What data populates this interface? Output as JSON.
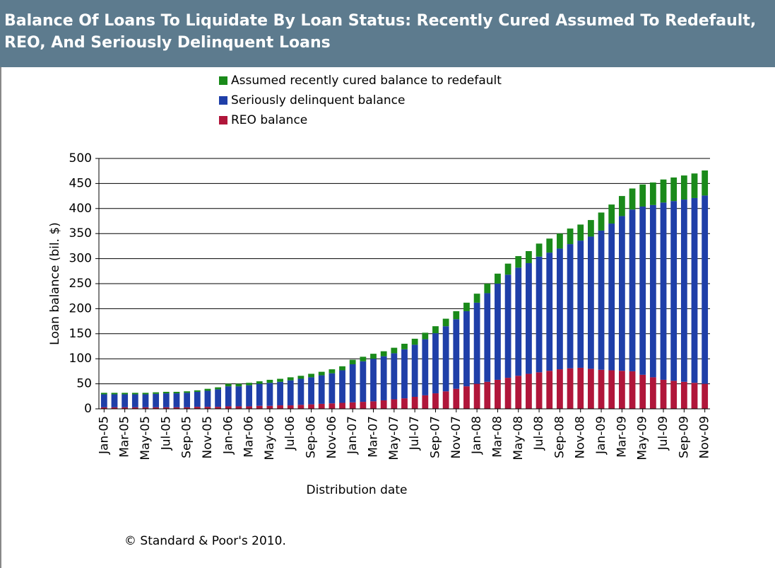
{
  "chart_data": {
    "type": "stacked_bar",
    "title": "Balance Of Loans To Liquidate By Loan Status: Recently Cured Assumed To Redefault, REO, And Seriously Delinquent Loans",
    "x_label": "Distribution date",
    "y_label": "Loan balance (bil. $)",
    "source": "© Standard & Poor's 2010.",
    "categories": [
      "Jan-05",
      null,
      "Mar-05",
      null,
      "May-05",
      null,
      "Jul-05",
      null,
      "Sep-05",
      null,
      "Nov-05",
      null,
      "Jan-06",
      null,
      "Mar-06",
      null,
      "May-06",
      null,
      "Jul-06",
      null,
      "Sep-06",
      null,
      "Nov-06",
      null,
      "Jan-07",
      null,
      "Mar-07",
      null,
      "May-07",
      null,
      "Jul-07",
      null,
      "Sep-07",
      null,
      "Nov-07",
      null,
      "Jan-08",
      null,
      "Mar-08",
      null,
      "May-08",
      null,
      "Jul-08",
      null,
      "Sep-08",
      null,
      "Nov-08",
      null,
      "Jan-09",
      null,
      "Mar-09",
      null,
      "May-09",
      null,
      "Jul-09",
      null,
      "Sep-09",
      null,
      "Nov-09"
    ],
    "series": [
      {
        "name": "REO balance",
        "color": "#b0163a",
        "values": [
          3,
          3,
          3,
          3,
          3,
          3,
          3,
          3,
          3,
          4,
          4,
          4,
          5,
          5,
          5,
          6,
          6,
          7,
          7,
          8,
          9,
          10,
          11,
          12,
          13,
          14,
          15,
          17,
          19,
          21,
          24,
          27,
          31,
          35,
          40,
          45,
          50,
          54,
          58,
          62,
          66,
          70,
          73,
          76,
          79,
          81,
          82,
          80,
          78,
          77,
          76,
          75,
          68,
          63,
          58,
          56,
          54,
          52,
          50
        ]
      },
      {
        "name": "Seriously delinquent balance",
        "color": "#1f3fa8",
        "values": [
          26,
          26,
          26,
          26,
          26,
          27,
          28,
          28,
          29,
          30,
          32,
          35,
          40,
          40,
          42,
          44,
          46,
          47,
          50,
          52,
          54,
          57,
          60,
          65,
          76,
          81,
          85,
          88,
          92,
          98,
          104,
          112,
          120,
          130,
          139,
          150,
          162,
          177,
          192,
          206,
          216,
          221,
          231,
          236,
          241,
          248,
          254,
          264,
          278,
          293,
          309,
          323,
          336,
          344,
          354,
          359,
          364,
          369,
          376
        ]
      },
      {
        "name": "Assumed recently cured balance to redefault",
        "color": "#1a8a1a",
        "values": [
          3,
          3,
          3,
          3,
          3,
          3,
          3,
          3,
          3,
          3,
          4,
          4,
          5,
          5,
          5,
          5,
          6,
          6,
          6,
          6,
          7,
          7,
          8,
          8,
          9,
          9,
          10,
          10,
          11,
          11,
          12,
          13,
          14,
          15,
          16,
          17,
          18,
          19,
          20,
          22,
          23,
          24,
          26,
          28,
          30,
          31,
          32,
          33,
          36,
          38,
          40,
          42,
          44,
          45,
          46,
          47,
          48,
          49,
          50
        ]
      }
    ],
    "ylim": [
      0,
      500
    ],
    "yticks": [
      0,
      50,
      100,
      150,
      200,
      250,
      300,
      350,
      400,
      450,
      500
    ],
    "grid": true
  }
}
